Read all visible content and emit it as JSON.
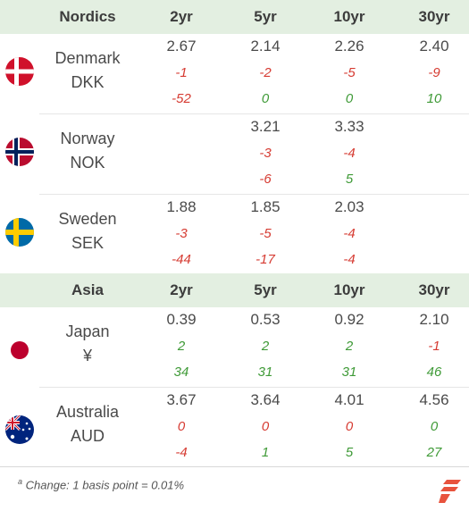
{
  "nordics": {
    "title": "Nordics",
    "cols": [
      "2yr",
      "5yr",
      "10yr",
      "30yr"
    ],
    "rows": [
      {
        "name": "Denmark",
        "code": "DKK",
        "values": [
          "2.67",
          "2.14",
          "2.26",
          "2.40"
        ],
        "change1": [
          "-1",
          "-2",
          "-5",
          "-9"
        ],
        "change2": [
          "-52",
          "0",
          "0",
          "10"
        ]
      },
      {
        "name": "Norway",
        "code": "NOK",
        "values": [
          "",
          "3.21",
          "3.33",
          ""
        ],
        "change1": [
          "",
          "-3",
          "-4",
          ""
        ],
        "change2": [
          "",
          "-6",
          "5",
          ""
        ]
      },
      {
        "name": "Sweden",
        "code": "SEK",
        "values": [
          "1.88",
          "1.85",
          "2.03",
          ""
        ],
        "change1": [
          "-3",
          "-5",
          "-4",
          ""
        ],
        "change2": [
          "-44",
          "-17",
          "-4",
          ""
        ]
      }
    ]
  },
  "asia": {
    "title": "Asia",
    "cols": [
      "2yr",
      "5yr",
      "10yr",
      "30yr"
    ],
    "rows": [
      {
        "name": "Japan",
        "code": "¥",
        "values": [
          "0.39",
          "0.53",
          "0.92",
          "2.10"
        ],
        "change1": [
          "2",
          "2",
          "2",
          "-1"
        ],
        "change2": [
          "34",
          "31",
          "31",
          "46"
        ]
      },
      {
        "name": "Australia",
        "code": "AUD",
        "values": [
          "3.67",
          "3.64",
          "4.01",
          "4.56"
        ],
        "change1": [
          "0",
          "0",
          "0",
          "0"
        ],
        "change2": [
          "-4",
          "1",
          "5",
          "27"
        ]
      }
    ]
  },
  "footnote": {
    "marker": "a",
    "text": "Change: 1 basis point = 0.01%"
  },
  "colors": {
    "header_bg": "#e3efe1",
    "negative": "#d63b32",
    "positive": "#3f9a37",
    "logo": "#e8533d"
  },
  "icons": {
    "logo": "brand-logo-icon",
    "flags": [
      "denmark-flag-icon",
      "norway-flag-icon",
      "sweden-flag-icon",
      "japan-flag-icon",
      "australia-flag-icon"
    ]
  }
}
